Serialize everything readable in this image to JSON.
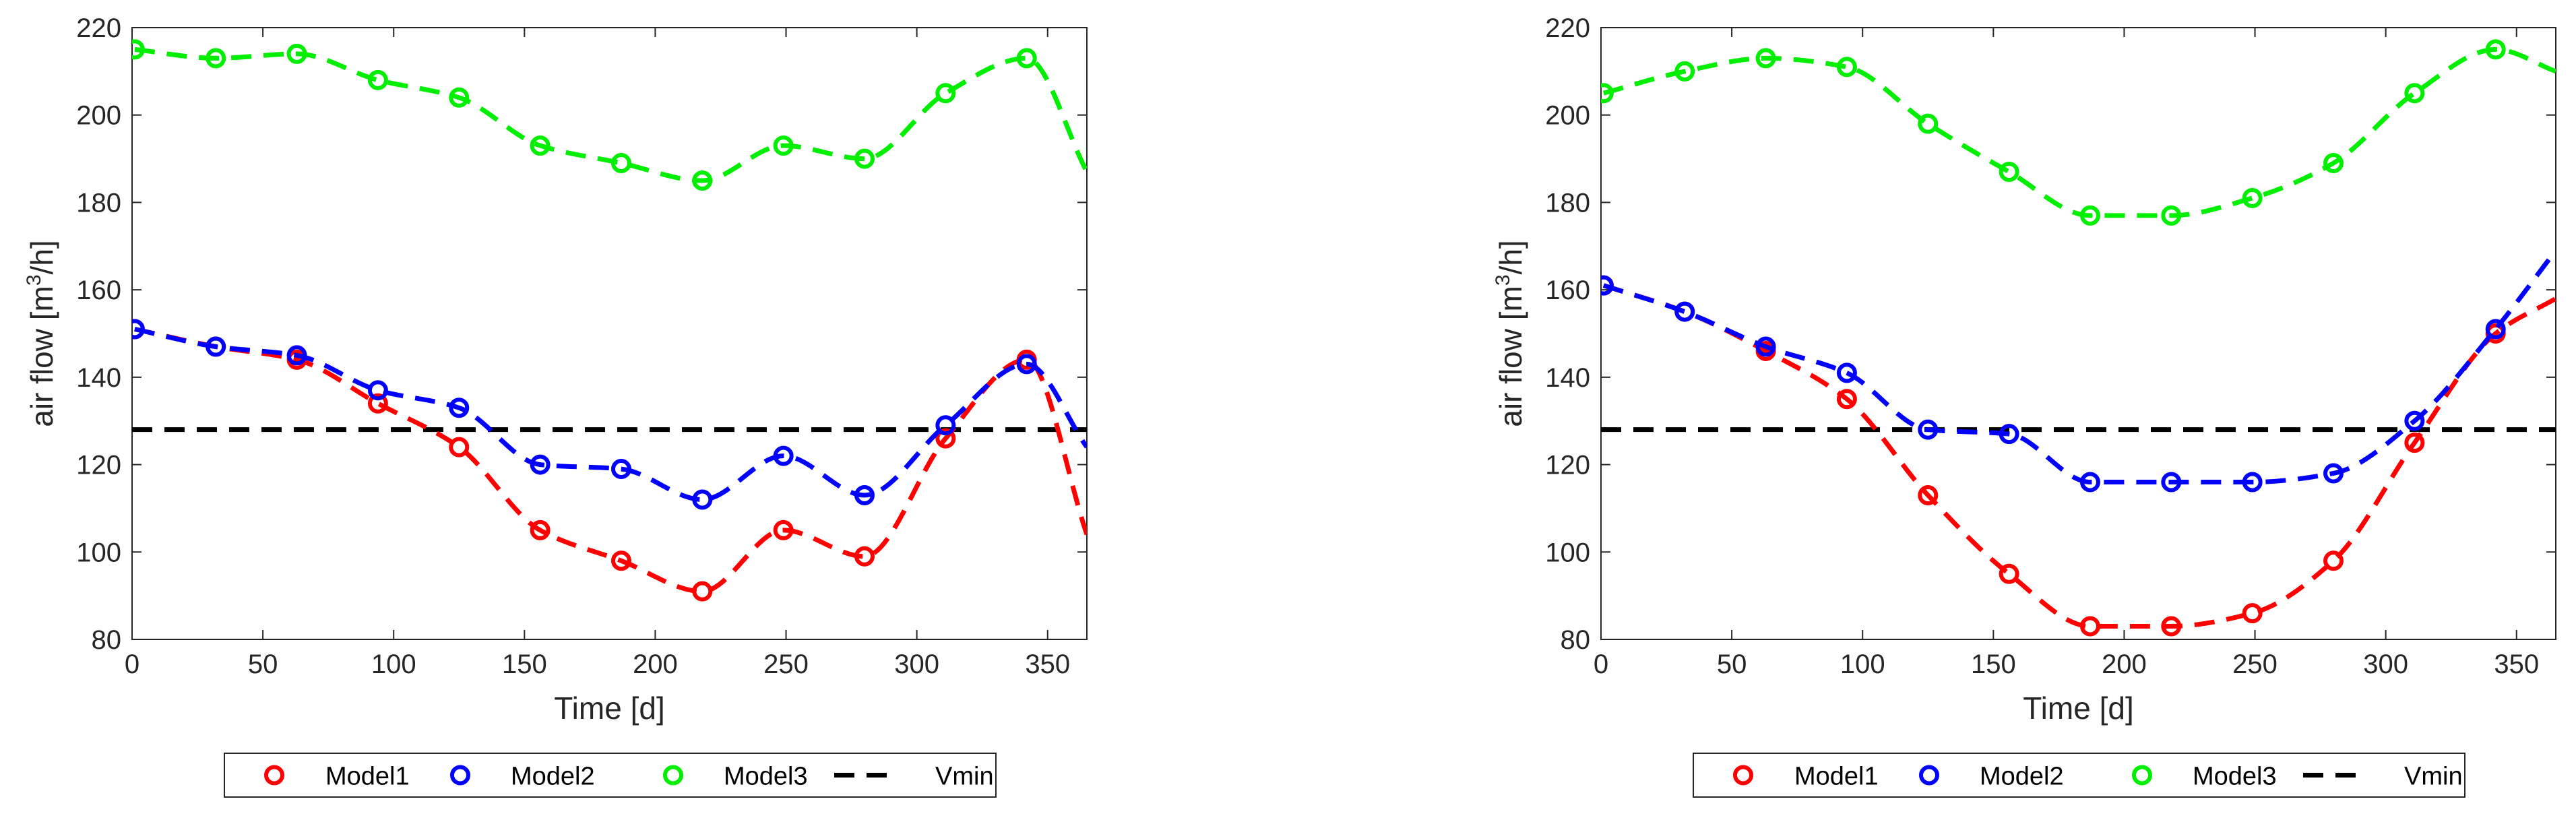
{
  "chart_data": [
    {
      "type": "line",
      "title": "",
      "xlabel": "Time [d]",
      "ylabel_parts": [
        "air flow [m",
        "3",
        "/h]"
      ],
      "xlim": [
        0,
        365
      ],
      "ylim": [
        80,
        220
      ],
      "xticks": [
        0,
        50,
        100,
        150,
        200,
        250,
        300,
        350
      ],
      "yticks": [
        80,
        100,
        120,
        140,
        160,
        180,
        200,
        220
      ],
      "grid": false,
      "legend_position": "bottom-center",
      "x": [
        1,
        32,
        63,
        94,
        125,
        156,
        187,
        218,
        249,
        280,
        311,
        342,
        365
      ],
      "series": [
        {
          "name": "Model1",
          "color": "#ff0000",
          "values": [
            151,
            147,
            144,
            134,
            124,
            105,
            98,
            91,
            105,
            99,
            126,
            144,
            104
          ],
          "marker_count": 12
        },
        {
          "name": "Model2",
          "color": "#0000ff",
          "values": [
            151,
            147,
            145,
            137,
            133,
            120,
            119,
            112,
            122,
            113,
            129,
            143,
            124
          ],
          "marker_count": 12
        },
        {
          "name": "Model3",
          "color": "#00ee00",
          "values": [
            215,
            213,
            214,
            208,
            204,
            193,
            189,
            185,
            193,
            190,
            205,
            213,
            187
          ],
          "marker_count": 12
        }
      ],
      "reference_line": {
        "name": "Vmin",
        "color": "#000000",
        "value": 128
      }
    },
    {
      "type": "line",
      "title": "",
      "xlabel": "Time [d]",
      "ylabel_parts": [
        "air flow [m",
        "3",
        "/h]"
      ],
      "xlim": [
        0,
        365
      ],
      "ylim": [
        80,
        220
      ],
      "xticks": [
        0,
        50,
        100,
        150,
        200,
        250,
        300,
        350
      ],
      "yticks": [
        80,
        100,
        120,
        140,
        160,
        180,
        200,
        220
      ],
      "grid": false,
      "legend_position": "bottom-center",
      "x": [
        1,
        32,
        63,
        94,
        125,
        156,
        187,
        218,
        249,
        280,
        311,
        342,
        365
      ],
      "series": [
        {
          "name": "Model1",
          "color": "#ff0000",
          "values": [
            161,
            155,
            146,
            135,
            113,
            95,
            83,
            83,
            86,
            98,
            125,
            150,
            158
          ],
          "marker_count": 12
        },
        {
          "name": "Model2",
          "color": "#0000ff",
          "values": [
            161,
            155,
            147,
            141,
            128,
            127,
            116,
            116,
            116,
            118,
            130,
            151,
            169
          ],
          "marker_count": 12
        },
        {
          "name": "Model3",
          "color": "#00ee00",
          "values": [
            205,
            210,
            213,
            211,
            198,
            187,
            177,
            177,
            181,
            189,
            205,
            215,
            210
          ],
          "marker_count": 12
        }
      ],
      "reference_line": {
        "name": "Vmin",
        "color": "#000000",
        "value": 128
      }
    }
  ]
}
